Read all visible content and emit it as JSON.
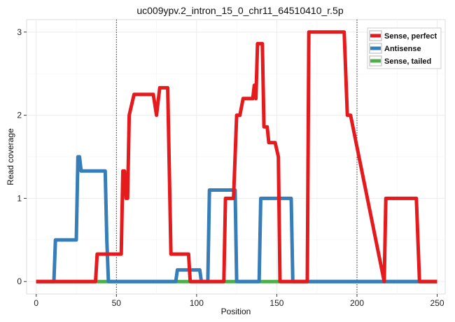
{
  "chart_data": {
    "type": "line",
    "title": "uc009ypv.2_intron_15_0_chr11_64510410_r.5p",
    "xlabel": "Position",
    "ylabel": "Read coverage",
    "xlim": [
      -6,
      255
    ],
    "ylim": [
      -0.15,
      3.15
    ],
    "x_ticks": [
      0,
      50,
      100,
      150,
      200,
      250
    ],
    "y_ticks": [
      0,
      1,
      2,
      3
    ],
    "vlines": [
      50,
      200
    ],
    "grid": true,
    "legend_position": "top-right",
    "series": [
      {
        "name": "Sense, perfect",
        "color": "#E41A1C",
        "x": [
          0,
          37,
          38,
          52,
          53,
          54,
          55,
          56,
          57,
          58,
          61,
          70,
          73,
          75,
          77,
          82,
          84,
          91,
          92,
          95,
          96,
          117,
          118,
          122,
          123,
          125,
          127,
          129,
          135,
          136,
          137,
          138,
          140,
          141,
          142,
          144,
          145,
          146,
          149,
          151,
          152,
          158,
          159,
          169,
          170,
          190,
          192,
          194,
          196,
          217,
          218,
          237,
          239,
          250
        ],
        "y": [
          0,
          0,
          0.33,
          0.33,
          0.33,
          1.33,
          1.33,
          1.0,
          1.0,
          2.0,
          2.25,
          2.25,
          2.25,
          2.0,
          2.33,
          2.33,
          0.33,
          0.33,
          0.33,
          0.33,
          0,
          0,
          1.0,
          1.0,
          1.0,
          2.0,
          2.0,
          2.2,
          2.2,
          2.36,
          2.2,
          2.86,
          2.86,
          2.86,
          1.86,
          1.86,
          1.67,
          1.67,
          1.67,
          1.5,
          0.0,
          0.0,
          0,
          0,
          3.0,
          3.0,
          3.0,
          2.0,
          2.0,
          0,
          1.0,
          1.0,
          0,
          0
        ]
      },
      {
        "name": "Antisense",
        "color": "#377EB8",
        "x": [
          0,
          11,
          12,
          25,
          26,
          27,
          28,
          42,
          43,
          44,
          45,
          87,
          88,
          102,
          103,
          107,
          108,
          124,
          125,
          139,
          140,
          159,
          160,
          250
        ],
        "y": [
          0,
          0,
          0.5,
          0.5,
          1.5,
          1.5,
          1.33,
          1.33,
          1.33,
          0.5,
          0,
          0,
          0.14,
          0.14,
          0,
          0,
          1.1,
          1.1,
          0,
          0,
          1.0,
          1.0,
          0,
          0
        ]
      },
      {
        "name": "Sense, tailed",
        "color": "#4DAF4A",
        "x": [
          0,
          250
        ],
        "y": [
          0,
          0
        ]
      }
    ]
  }
}
